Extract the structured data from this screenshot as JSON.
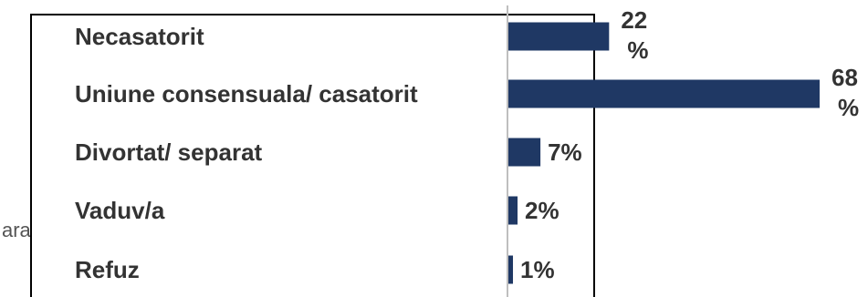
{
  "side_text": "ara",
  "colors": {
    "bar": "#1f3864",
    "axis": "#bfbfbf",
    "frame": "#000000",
    "text": "#333333"
  },
  "chart_data": {
    "type": "bar",
    "orientation": "horizontal",
    "categories": [
      "Necasatorit",
      "Uniune consensuala/ casatorit",
      "Divortat/ separat",
      "Vaduv/a",
      "Refuz"
    ],
    "values": [
      22,
      68,
      7,
      2,
      1
    ],
    "value_labels": [
      [
        "22",
        "%"
      ],
      [
        "68",
        "%"
      ],
      [
        "7%"
      ],
      [
        "2%"
      ],
      [
        "1%"
      ]
    ],
    "unit": "%",
    "title": "",
    "xlabel": "",
    "ylabel": "",
    "xlim": [
      0,
      68
    ],
    "grid": false,
    "legend": "none"
  }
}
